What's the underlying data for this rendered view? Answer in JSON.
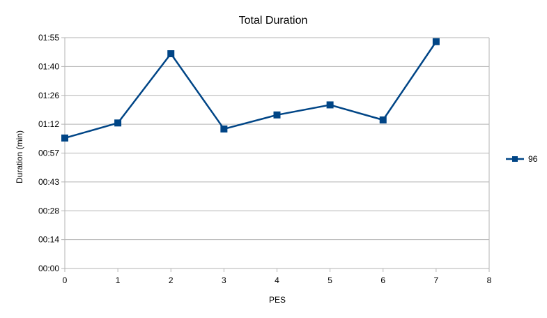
{
  "chart_data": {
    "type": "line",
    "title": "Total Duration",
    "xlabel": "PES",
    "ylabel": "Duration (min)",
    "xlim": [
      0,
      8
    ],
    "x_ticks": [
      "0",
      "1",
      "2",
      "3",
      "4",
      "5",
      "6",
      "7",
      "8"
    ],
    "ylim": [
      0,
      115
    ],
    "y_ticks": [
      {
        "value": 0,
        "label": "00:00"
      },
      {
        "value": 14.375,
        "label": "00:14"
      },
      {
        "value": 28.75,
        "label": "00:28"
      },
      {
        "value": 43.125,
        "label": "00:43"
      },
      {
        "value": 57.5,
        "label": "00:57"
      },
      {
        "value": 71.875,
        "label": "01:12"
      },
      {
        "value": 86.25,
        "label": "01:26"
      },
      {
        "value": 100.625,
        "label": "01:40"
      },
      {
        "value": 115,
        "label": "01:55"
      }
    ],
    "grid": true,
    "legend": "right",
    "series": [
      {
        "name": "96",
        "color": "#004586",
        "marker": "square",
        "x": [
          0,
          1,
          2,
          3,
          4,
          5,
          6,
          7
        ],
        "y": [
          65,
          72.5,
          107,
          69.5,
          76.5,
          81.5,
          74,
          113
        ]
      }
    ]
  }
}
